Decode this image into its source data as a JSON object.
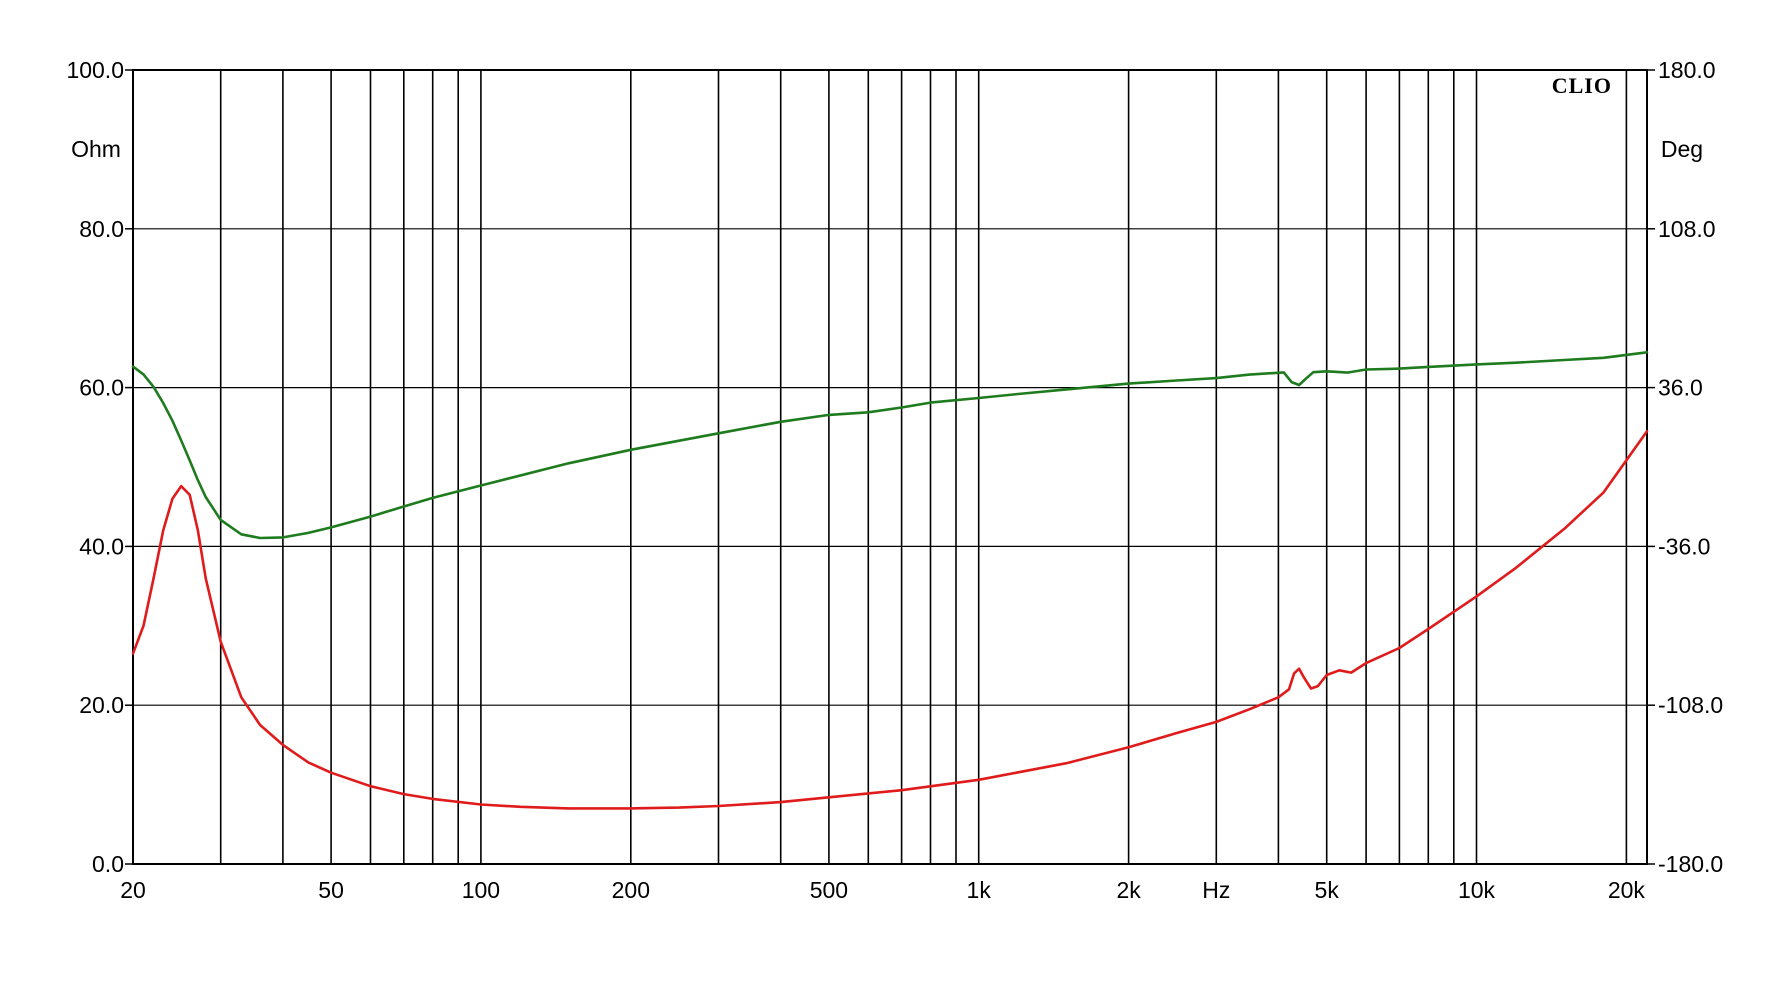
{
  "chart_data": {
    "type": "line",
    "brand": "CLIO",
    "x_scale": "log",
    "xlim": [
      20,
      22000
    ],
    "x_tick_labels": [
      {
        "value": 20,
        "label": "20"
      },
      {
        "value": 50,
        "label": "50"
      },
      {
        "value": 100,
        "label": "100"
      },
      {
        "value": 200,
        "label": "200"
      },
      {
        "value": 500,
        "label": "500"
      },
      {
        "value": 1000,
        "label": "1k"
      },
      {
        "value": 2000,
        "label": "2k"
      },
      {
        "value": 3000,
        "label": "Hz"
      },
      {
        "value": 5000,
        "label": "5k"
      },
      {
        "value": 10000,
        "label": "10k"
      },
      {
        "value": 20000,
        "label": "20k"
      }
    ],
    "x_grid_values": [
      20,
      30,
      40,
      50,
      60,
      70,
      80,
      90,
      100,
      200,
      300,
      400,
      500,
      600,
      700,
      800,
      900,
      1000,
      2000,
      3000,
      4000,
      5000,
      6000,
      7000,
      8000,
      9000,
      10000,
      20000
    ],
    "y_left": {
      "unit": "Ohm",
      "range": [
        0,
        100
      ],
      "ticks": [
        {
          "value": 0,
          "label": "0.0"
        },
        {
          "value": 20,
          "label": "20.0"
        },
        {
          "value": 40,
          "label": "40.0"
        },
        {
          "value": 60,
          "label": "60.0"
        },
        {
          "value": 80,
          "label": "80.0"
        },
        {
          "value": 100,
          "label": "100.0"
        }
      ]
    },
    "y_right": {
      "unit": "Deg",
      "range": [
        -180,
        180
      ],
      "ticks": [
        {
          "value": -180,
          "label": "-180.0"
        },
        {
          "value": -108,
          "label": "-108.0"
        },
        {
          "value": -36,
          "label": "-36.0"
        },
        {
          "value": 36,
          "label": "36.0"
        },
        {
          "value": 108,
          "label": "108.0"
        },
        {
          "value": 180,
          "label": "180.0"
        }
      ]
    },
    "grid": true,
    "series": [
      {
        "axis": "left",
        "color": "#e01b1b",
        "points": [
          [
            20,
            26.5
          ],
          [
            21,
            30
          ],
          [
            22,
            36
          ],
          [
            23,
            42
          ],
          [
            24,
            46
          ],
          [
            25,
            47.6
          ],
          [
            26,
            46.5
          ],
          [
            27,
            42
          ],
          [
            28,
            36
          ],
          [
            30,
            28
          ],
          [
            33,
            21
          ],
          [
            36,
            17.5
          ],
          [
            40,
            15
          ],
          [
            45,
            12.8
          ],
          [
            50,
            11.5
          ],
          [
            60,
            9.8
          ],
          [
            70,
            8.8
          ],
          [
            80,
            8.2
          ],
          [
            100,
            7.5
          ],
          [
            120,
            7.2
          ],
          [
            150,
            7.0
          ],
          [
            200,
            7.0
          ],
          [
            250,
            7.1
          ],
          [
            300,
            7.3
          ],
          [
            400,
            7.8
          ],
          [
            500,
            8.4
          ],
          [
            700,
            9.3
          ],
          [
            1000,
            10.6
          ],
          [
            1500,
            12.7
          ],
          [
            2000,
            14.7
          ],
          [
            2500,
            16.5
          ],
          [
            3000,
            17.9
          ],
          [
            3500,
            19.5
          ],
          [
            4000,
            21.0
          ],
          [
            4200,
            22.0
          ],
          [
            4300,
            24.0
          ],
          [
            4400,
            24.6
          ],
          [
            4500,
            23.5
          ],
          [
            4650,
            22.1
          ],
          [
            4800,
            22.4
          ],
          [
            5000,
            23.8
          ],
          [
            5300,
            24.4
          ],
          [
            5600,
            24.1
          ],
          [
            6000,
            25.3
          ],
          [
            7000,
            27.2
          ],
          [
            8000,
            29.6
          ],
          [
            10000,
            33.7
          ],
          [
            12000,
            37.3
          ],
          [
            15000,
            42.2
          ],
          [
            18000,
            46.8
          ],
          [
            22000,
            54.5
          ]
        ]
      },
      {
        "axis": "right",
        "color": "#1e7b1e",
        "points": [
          [
            20,
            45.5
          ],
          [
            21,
            42
          ],
          [
            22,
            36.3
          ],
          [
            23,
            29
          ],
          [
            24,
            21
          ],
          [
            25,
            12
          ],
          [
            26,
            3
          ],
          [
            27,
            -6
          ],
          [
            28,
            -13.6
          ],
          [
            30,
            -24
          ],
          [
            33,
            -30.5
          ],
          [
            36,
            -32.2
          ],
          [
            40,
            -31.9
          ],
          [
            45,
            -29.9
          ],
          [
            50,
            -27.4
          ],
          [
            60,
            -22.5
          ],
          [
            70,
            -17.9
          ],
          [
            80,
            -14.0
          ],
          [
            100,
            -8.4
          ],
          [
            150,
            1.7
          ],
          [
            200,
            7.8
          ],
          [
            300,
            15.3
          ],
          [
            400,
            20.5
          ],
          [
            500,
            23.6
          ],
          [
            600,
            24.8
          ],
          [
            700,
            27.0
          ],
          [
            800,
            29.2
          ],
          [
            1000,
            31.3
          ],
          [
            1200,
            33.1
          ],
          [
            1500,
            35.2
          ],
          [
            2000,
            37.8
          ],
          [
            2500,
            39.2
          ],
          [
            3000,
            40.3
          ],
          [
            3500,
            41.9
          ],
          [
            4100,
            42.9
          ],
          [
            4250,
            38.5
          ],
          [
            4400,
            37.2
          ],
          [
            4550,
            40.2
          ],
          [
            4700,
            43.0
          ],
          [
            5000,
            43.4
          ],
          [
            5500,
            42.8
          ],
          [
            6000,
            44.2
          ],
          [
            7000,
            44.6
          ],
          [
            8000,
            45.4
          ],
          [
            10000,
            46.5
          ],
          [
            12000,
            47.3
          ],
          [
            15000,
            48.5
          ],
          [
            18000,
            49.5
          ],
          [
            22000,
            52.0
          ]
        ]
      }
    ]
  }
}
